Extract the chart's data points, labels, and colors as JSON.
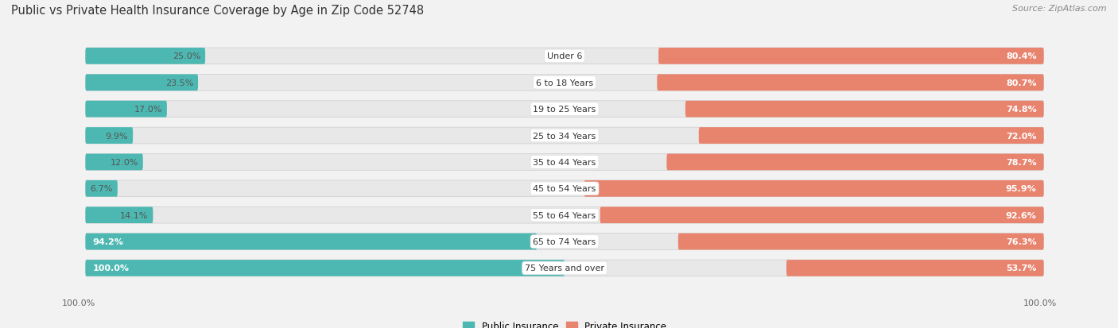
{
  "title": "Public vs Private Health Insurance Coverage by Age in Zip Code 52748",
  "source": "Source: ZipAtlas.com",
  "categories": [
    "Under 6",
    "6 to 18 Years",
    "19 to 25 Years",
    "25 to 34 Years",
    "35 to 44 Years",
    "45 to 54 Years",
    "55 to 64 Years",
    "65 to 74 Years",
    "75 Years and over"
  ],
  "public_values": [
    25.0,
    23.5,
    17.0,
    9.9,
    12.0,
    6.7,
    14.1,
    94.2,
    100.0
  ],
  "private_values": [
    80.4,
    80.7,
    74.8,
    72.0,
    78.7,
    95.9,
    92.6,
    76.3,
    53.7
  ],
  "public_color": "#4db8b2",
  "private_color": "#e8836e",
  "background_color": "#f2f2f2",
  "bar_bg_color": "#e0e0e0",
  "title_fontsize": 10.5,
  "source_fontsize": 8,
  "label_fontsize": 8,
  "value_fontsize": 8,
  "legend_fontsize": 8.5,
  "max_value": 100.0,
  "legend_public": "Public Insurance",
  "legend_private": "Private Insurance",
  "xlim_left": -105,
  "xlim_right": 105,
  "bar_height": 0.62,
  "row_bg_color": "#e8e8e8",
  "row_bg_alpha": 1.0,
  "white_label_bg": "#ffffff"
}
